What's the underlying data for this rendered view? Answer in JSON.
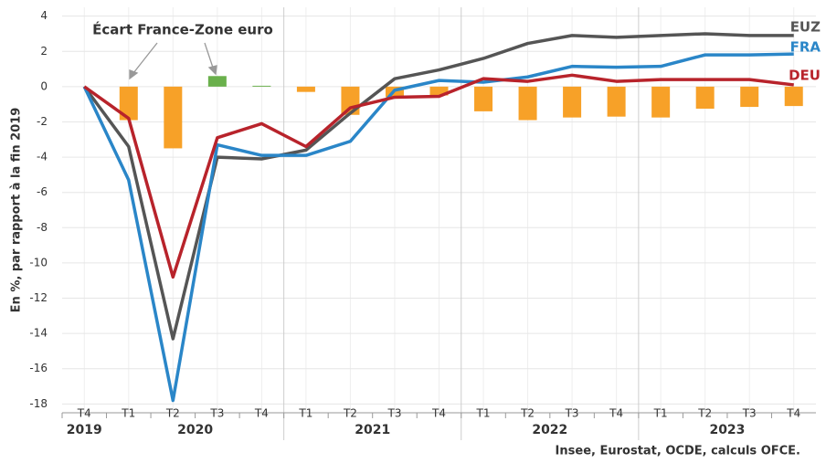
{
  "chart_data": {
    "type": "line",
    "y_axis_label": "En %, par rapport à la fin 2019",
    "source": "Insee, Eurostat, OCDE, calculs OFCE.",
    "categories": [
      "T4",
      "T1",
      "T2",
      "T3",
      "T4",
      "T1",
      "T2",
      "T3",
      "T4",
      "T1",
      "T2",
      "T3",
      "T4",
      "T1",
      "T2",
      "T3",
      "T4"
    ],
    "years": [
      "2019",
      "2020",
      "2020",
      "2020",
      "2020",
      "2021",
      "2021",
      "2021",
      "2021",
      "2022",
      "2022",
      "2022",
      "2022",
      "2023",
      "2023",
      "2023",
      "2023"
    ],
    "ylim": [
      -18.5,
      4.5
    ],
    "yticks": [
      4,
      2,
      0,
      -2,
      -4,
      -6,
      -8,
      -10,
      -12,
      -14,
      -16,
      -18
    ],
    "grid": true,
    "bars": {
      "name": "Écart France-Zone euro",
      "positive_color": "#6ab04c",
      "negative_color": "#f7a128",
      "values": [
        0,
        -1.9,
        -3.5,
        0.6,
        0.05,
        -0.3,
        -1.6,
        -0.6,
        -0.5,
        -1.4,
        -1.9,
        -1.75,
        -1.7,
        -1.75,
        -1.25,
        -1.15,
        -1.1
      ]
    },
    "series": [
      {
        "name": "EUZ",
        "color": "#555555",
        "values": [
          0,
          -3.4,
          -14.3,
          -4.0,
          -4.1,
          -3.6,
          -1.5,
          0.45,
          0.95,
          1.6,
          2.45,
          2.9,
          2.8,
          2.9,
          3.0,
          2.9,
          2.9
        ]
      },
      {
        "name": "FRA",
        "color": "#2a86c8",
        "values": [
          0,
          -5.3,
          -17.8,
          -3.3,
          -3.9,
          -3.9,
          -3.1,
          -0.2,
          0.35,
          0.25,
          0.55,
          1.15,
          1.1,
          1.15,
          1.8,
          1.8,
          1.85
        ]
      },
      {
        "name": "DEU",
        "color": "#b8232b",
        "values": [
          0,
          -1.8,
          -10.8,
          -2.9,
          -2.1,
          -3.4,
          -1.2,
          -0.6,
          -0.55,
          0.45,
          0.3,
          0.65,
          0.3,
          0.4,
          0.4,
          0.4,
          0.1
        ]
      }
    ]
  }
}
